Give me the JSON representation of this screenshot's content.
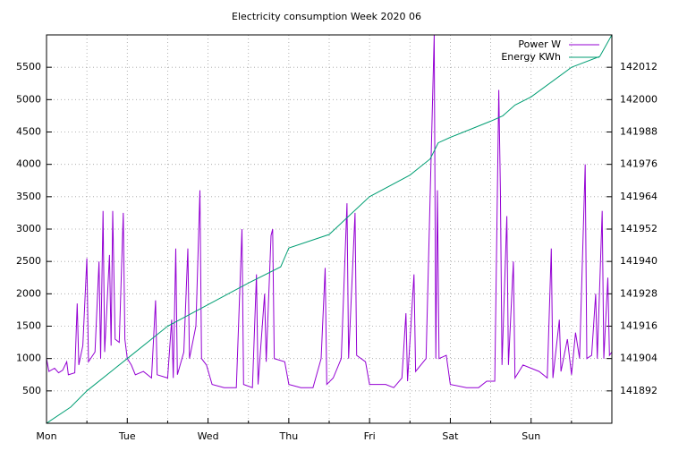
{
  "chart_data": {
    "type": "line",
    "title": "Electricity consumption Week 2020 06",
    "xlim": [
      0,
      7
    ],
    "xticks": [
      {
        "value": 0,
        "label": "Mon"
      },
      {
        "value": 1,
        "label": "Tue"
      },
      {
        "value": 2,
        "label": "Wed"
      },
      {
        "value": 3,
        "label": "Thu"
      },
      {
        "value": 4,
        "label": "Fri"
      },
      {
        "value": 5,
        "label": "Sat"
      },
      {
        "value": 6,
        "label": "Sun"
      }
    ],
    "x_minor_ticks": [
      0.5,
      1.5,
      2.5,
      3.5,
      4.5,
      5.5,
      6.5
    ],
    "ylim": [
      0,
      6000
    ],
    "yticks": [
      500,
      1000,
      1500,
      2000,
      2500,
      3000,
      3500,
      4000,
      4500,
      5000,
      5500
    ],
    "y2lim": [
      141880,
      142024
    ],
    "y2ticks": [
      141892,
      141904,
      141916,
      141928,
      141940,
      141952,
      141964,
      141976,
      141988,
      142000,
      142012
    ],
    "grid": true,
    "legend": "top-right",
    "series": [
      {
        "name": "Power W",
        "color": "#9400d3",
        "x": [
          0,
          0.03,
          0.1,
          0.15,
          0.2,
          0.25,
          0.27,
          0.35,
          0.38,
          0.4,
          0.45,
          0.5,
          0.52,
          0.6,
          0.65,
          0.67,
          0.7,
          0.72,
          0.78,
          0.8,
          0.82,
          0.85,
          0.9,
          0.95,
          0.97,
          1.0,
          1.05,
          1.1,
          1.2,
          1.3,
          1.35,
          1.37,
          1.5,
          1.55,
          1.57,
          1.6,
          1.62,
          1.7,
          1.75,
          1.77,
          1.85,
          1.9,
          1.92,
          1.98,
          2.05,
          2.2,
          2.35,
          2.42,
          2.44,
          2.55,
          2.6,
          2.62,
          2.7,
          2.72,
          2.78,
          2.8,
          2.82,
          2.95,
          3.0,
          3.15,
          3.3,
          3.4,
          3.45,
          3.47,
          3.55,
          3.65,
          3.72,
          3.74,
          3.82,
          3.84,
          3.95,
          4.0,
          4.2,
          4.3,
          4.4,
          4.45,
          4.47,
          4.55,
          4.57,
          4.7,
          4.8,
          4.82,
          4.84,
          4.86,
          4.95,
          5.0,
          5.2,
          5.35,
          5.45,
          5.55,
          5.6,
          5.62,
          5.64,
          5.7,
          5.72,
          5.78,
          5.8,
          5.9,
          6.0,
          6.1,
          6.2,
          6.25,
          6.27,
          6.35,
          6.37,
          6.45,
          6.5,
          6.55,
          6.6,
          6.67,
          6.69,
          6.75,
          6.8,
          6.82,
          6.88,
          6.9,
          6.95,
          6.97,
          7.0
        ],
        "values": [
          1000,
          800,
          850,
          780,
          820,
          950,
          750,
          780,
          1850,
          900,
          1200,
          2550,
          950,
          1100,
          2500,
          1000,
          3280,
          1100,
          2600,
          1200,
          3280,
          1300,
          1250,
          3250,
          1300,
          1000,
          900,
          750,
          800,
          700,
          1900,
          750,
          700,
          1600,
          700,
          2700,
          750,
          1100,
          2700,
          1000,
          1500,
          3600,
          1000,
          900,
          600,
          550,
          550,
          3000,
          600,
          550,
          2300,
          600,
          2000,
          950,
          2900,
          3000,
          1000,
          950,
          600,
          550,
          550,
          1000,
          2400,
          600,
          700,
          1000,
          3400,
          1000,
          3250,
          1050,
          950,
          600,
          600,
          550,
          700,
          1700,
          650,
          2300,
          800,
          1000,
          6000,
          1000,
          3600,
          1000,
          1050,
          600,
          550,
          550,
          650,
          650,
          5150,
          3600,
          900,
          3200,
          900,
          2500,
          700,
          900,
          850,
          800,
          700,
          2700,
          700,
          1600,
          800,
          1300,
          750,
          1400,
          1000,
          4000,
          1000,
          1050,
          2000,
          1000,
          3280,
          1000,
          2250,
          1050,
          1100
        ]
      },
      {
        "name": "Energy KWh",
        "color": "#009e73",
        "axis": "y2",
        "x": [
          0,
          0.3,
          0.5,
          1.0,
          1.5,
          2.0,
          2.5,
          2.9,
          3.0,
          3.5,
          4.0,
          4.5,
          4.75,
          4.85,
          5.0,
          5.5,
          5.65,
          5.8,
          6.0,
          6.5,
          6.85,
          7.0
        ],
        "values": [
          141880,
          141886,
          141892,
          141904,
          141916,
          141924,
          141932,
          141938,
          141945,
          141950,
          141964,
          141972,
          141978,
          141984,
          141986,
          141992,
          141994,
          141998,
          142001,
          142012,
          142016,
          142024
        ]
      }
    ]
  }
}
